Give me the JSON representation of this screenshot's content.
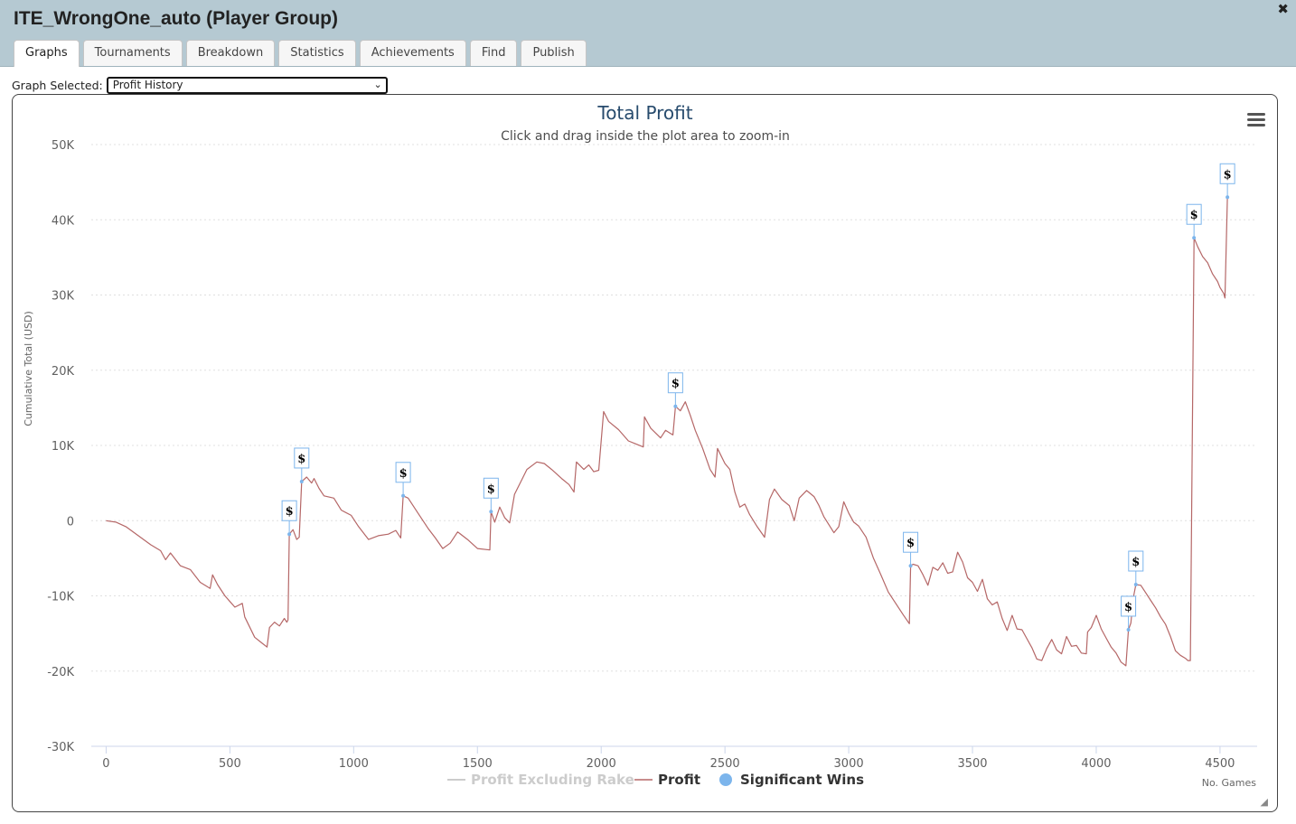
{
  "window": {
    "title": "ITE_WrongOne_auto (Player Group)",
    "close_glyph": "✖"
  },
  "tabs": [
    {
      "label": "Graphs",
      "active": true
    },
    {
      "label": "Tournaments",
      "active": false
    },
    {
      "label": "Breakdown",
      "active": false
    },
    {
      "label": "Statistics",
      "active": false
    },
    {
      "label": "Achievements",
      "active": false
    },
    {
      "label": "Find",
      "active": false
    },
    {
      "label": "Publish",
      "active": false
    }
  ],
  "graph_select": {
    "label": "Graph Selected:",
    "value": "Profit History"
  },
  "menu_icon": "hamburger-menu-icon",
  "colors": {
    "profit_line": "#b56767",
    "significant_wins": "#7cb5ec",
    "excluding_rake_legend": "#cccccc",
    "header_bg": "#b5c9d2"
  },
  "chart_data": {
    "type": "line",
    "title": "Total Profit",
    "subtitle": "Click and drag inside the plot area to zoom-in",
    "xlabel": "No. Games",
    "ylabel": "Cumulative Total (USD)",
    "xlim": [
      -60,
      4650
    ],
    "ylim": [
      -30000,
      50000
    ],
    "x_ticks": [
      0,
      500,
      1000,
      1500,
      2000,
      2500,
      3000,
      3500,
      4000,
      4500
    ],
    "x_tick_labels": [
      "0",
      "500",
      "1000",
      "1500",
      "2000",
      "2500",
      "3000",
      "3500",
      "4000",
      "4500"
    ],
    "y_ticks": [
      -30000,
      -20000,
      -10000,
      0,
      10000,
      20000,
      30000,
      40000,
      50000
    ],
    "y_tick_labels": [
      "-30K",
      "-20K",
      "-10K",
      "0",
      "10K",
      "20K",
      "30K",
      "40K",
      "50K"
    ],
    "grid": "horizontal dotted",
    "legend_position": "bottom-center",
    "legend": [
      {
        "name": "Profit Excluding Rake",
        "visible": false
      },
      {
        "name": "Profit",
        "visible": true
      },
      {
        "name": "Significant Wins",
        "visible": true
      }
    ],
    "series": [
      {
        "name": "Profit",
        "points": [
          [
            0,
            0
          ],
          [
            40,
            -200
          ],
          [
            80,
            -800
          ],
          [
            130,
            -2000
          ],
          [
            180,
            -3200
          ],
          [
            220,
            -4000
          ],
          [
            240,
            -5200
          ],
          [
            260,
            -4300
          ],
          [
            300,
            -6000
          ],
          [
            340,
            -6500
          ],
          [
            380,
            -8200
          ],
          [
            420,
            -9000
          ],
          [
            430,
            -7200
          ],
          [
            450,
            -8500
          ],
          [
            480,
            -10000
          ],
          [
            520,
            -11500
          ],
          [
            550,
            -11000
          ],
          [
            560,
            -12800
          ],
          [
            600,
            -15500
          ],
          [
            630,
            -16300
          ],
          [
            650,
            -16800
          ],
          [
            660,
            -14200
          ],
          [
            680,
            -13500
          ],
          [
            700,
            -14000
          ],
          [
            720,
            -13000
          ],
          [
            730,
            -13500
          ],
          [
            735,
            -13200
          ],
          [
            740,
            -1800
          ],
          [
            755,
            -1200
          ],
          [
            770,
            -2500
          ],
          [
            780,
            -2200
          ],
          [
            790,
            5200
          ],
          [
            810,
            5800
          ],
          [
            830,
            5000
          ],
          [
            840,
            5600
          ],
          [
            860,
            4300
          ],
          [
            880,
            3300
          ],
          [
            920,
            3000
          ],
          [
            950,
            1400
          ],
          [
            990,
            700
          ],
          [
            1020,
            -800
          ],
          [
            1060,
            -2500
          ],
          [
            1100,
            -2000
          ],
          [
            1140,
            -1800
          ],
          [
            1170,
            -1300
          ],
          [
            1190,
            -2300
          ],
          [
            1200,
            3300
          ],
          [
            1220,
            3000
          ],
          [
            1260,
            1000
          ],
          [
            1300,
            -1000
          ],
          [
            1330,
            -2300
          ],
          [
            1360,
            -3700
          ],
          [
            1390,
            -3000
          ],
          [
            1420,
            -1500
          ],
          [
            1460,
            -2500
          ],
          [
            1500,
            -3700
          ],
          [
            1550,
            -3900
          ],
          [
            1555,
            1200
          ],
          [
            1570,
            -200
          ],
          [
            1590,
            1800
          ],
          [
            1610,
            400
          ],
          [
            1630,
            -300
          ],
          [
            1650,
            3500
          ],
          [
            1680,
            5500
          ],
          [
            1700,
            6800
          ],
          [
            1740,
            7800
          ],
          [
            1770,
            7600
          ],
          [
            1800,
            6800
          ],
          [
            1840,
            5600
          ],
          [
            1870,
            4800
          ],
          [
            1890,
            3800
          ],
          [
            1900,
            7800
          ],
          [
            1930,
            6800
          ],
          [
            1950,
            7400
          ],
          [
            1970,
            6500
          ],
          [
            1990,
            6700
          ],
          [
            2010,
            14500
          ],
          [
            2030,
            13200
          ],
          [
            2070,
            12100
          ],
          [
            2110,
            10600
          ],
          [
            2140,
            10200
          ],
          [
            2170,
            9800
          ],
          [
            2175,
            13800
          ],
          [
            2200,
            12300
          ],
          [
            2240,
            11000
          ],
          [
            2260,
            12000
          ],
          [
            2280,
            11600
          ],
          [
            2290,
            11400
          ],
          [
            2300,
            15200
          ],
          [
            2320,
            14600
          ],
          [
            2340,
            15800
          ],
          [
            2360,
            14000
          ],
          [
            2380,
            12000
          ],
          [
            2410,
            9600
          ],
          [
            2440,
            6800
          ],
          [
            2460,
            5800
          ],
          [
            2470,
            9600
          ],
          [
            2500,
            7600
          ],
          [
            2520,
            6800
          ],
          [
            2540,
            3800
          ],
          [
            2560,
            1800
          ],
          [
            2580,
            2200
          ],
          [
            2600,
            800
          ],
          [
            2630,
            -800
          ],
          [
            2660,
            -2200
          ],
          [
            2680,
            2800
          ],
          [
            2700,
            4200
          ],
          [
            2730,
            2800
          ],
          [
            2760,
            2000
          ],
          [
            2780,
            0
          ],
          [
            2800,
            3000
          ],
          [
            2830,
            4000
          ],
          [
            2860,
            3200
          ],
          [
            2880,
            2000
          ],
          [
            2900,
            500
          ],
          [
            2940,
            -1600
          ],
          [
            2960,
            -800
          ],
          [
            2980,
            2500
          ],
          [
            3000,
            1000
          ],
          [
            3020,
            -200
          ],
          [
            3040,
            -700
          ],
          [
            3070,
            -2200
          ],
          [
            3100,
            -5000
          ],
          [
            3130,
            -7200
          ],
          [
            3160,
            -9500
          ],
          [
            3190,
            -11000
          ],
          [
            3220,
            -12500
          ],
          [
            3245,
            -13700
          ],
          [
            3250,
            -6000
          ],
          [
            3260,
            -5800
          ],
          [
            3280,
            -6000
          ],
          [
            3300,
            -7200
          ],
          [
            3320,
            -8600
          ],
          [
            3340,
            -6200
          ],
          [
            3360,
            -6600
          ],
          [
            3380,
            -5600
          ],
          [
            3400,
            -7000
          ],
          [
            3420,
            -6800
          ],
          [
            3440,
            -4200
          ],
          [
            3460,
            -5500
          ],
          [
            3480,
            -7600
          ],
          [
            3500,
            -8200
          ],
          [
            3520,
            -9400
          ],
          [
            3540,
            -7800
          ],
          [
            3560,
            -10400
          ],
          [
            3580,
            -11200
          ],
          [
            3600,
            -10800
          ],
          [
            3620,
            -13000
          ],
          [
            3640,
            -14600
          ],
          [
            3660,
            -12600
          ],
          [
            3680,
            -14400
          ],
          [
            3700,
            -14500
          ],
          [
            3720,
            -15700
          ],
          [
            3740,
            -16900
          ],
          [
            3760,
            -18400
          ],
          [
            3780,
            -18600
          ],
          [
            3800,
            -17000
          ],
          [
            3820,
            -15800
          ],
          [
            3840,
            -17200
          ],
          [
            3860,
            -17700
          ],
          [
            3880,
            -15400
          ],
          [
            3900,
            -16700
          ],
          [
            3920,
            -16600
          ],
          [
            3940,
            -17600
          ],
          [
            3960,
            -17700
          ],
          [
            3965,
            -14800
          ],
          [
            3980,
            -14200
          ],
          [
            4000,
            -12600
          ],
          [
            4020,
            -14400
          ],
          [
            4040,
            -15600
          ],
          [
            4060,
            -16800
          ],
          [
            4080,
            -17600
          ],
          [
            4100,
            -18800
          ],
          [
            4120,
            -19300
          ],
          [
            4130,
            -14500
          ],
          [
            4140,
            -13600
          ],
          [
            4150,
            -10200
          ],
          [
            4160,
            -8500
          ],
          [
            4180,
            -8600
          ],
          [
            4200,
            -9600
          ],
          [
            4220,
            -10600
          ],
          [
            4240,
            -11600
          ],
          [
            4260,
            -12800
          ],
          [
            4280,
            -13800
          ],
          [
            4300,
            -15400
          ],
          [
            4320,
            -17300
          ],
          [
            4340,
            -17900
          ],
          [
            4360,
            -18300
          ],
          [
            4370,
            -18600
          ],
          [
            4380,
            -18600
          ],
          [
            4395,
            37600
          ],
          [
            4410,
            36400
          ],
          [
            4430,
            35100
          ],
          [
            4450,
            34300
          ],
          [
            4470,
            32800
          ],
          [
            4490,
            31800
          ],
          [
            4500,
            31000
          ],
          [
            4515,
            30200
          ],
          [
            4520,
            29600
          ],
          [
            4530,
            43000
          ]
        ]
      },
      {
        "name": "Significant Wins",
        "points": [
          [
            740,
            -1800
          ],
          [
            790,
            5200
          ],
          [
            1200,
            3300
          ],
          [
            1555,
            1200
          ],
          [
            2300,
            15200
          ],
          [
            3250,
            -6000
          ],
          [
            4130,
            -14500
          ],
          [
            4160,
            -8500
          ],
          [
            4395,
            37600
          ],
          [
            4530,
            43000
          ]
        ],
        "flag_text": "$"
      }
    ]
  }
}
